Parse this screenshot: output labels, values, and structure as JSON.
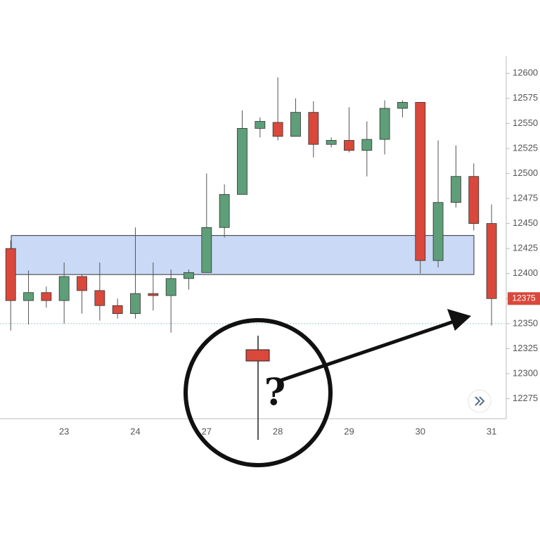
{
  "chart_data": {
    "type": "candlestick",
    "categories": [
      null,
      null,
      null,
      "23",
      null,
      null,
      null,
      "24",
      null,
      null,
      null,
      "27",
      null,
      null,
      null,
      "28",
      null,
      null,
      null,
      "29",
      null,
      null,
      null,
      "30",
      null,
      null,
      null,
      "31"
    ],
    "open": [
      12425,
      12373,
      12381,
      12373,
      12397,
      12383,
      12368,
      12360,
      12380,
      12378,
      12395,
      12401,
      12446,
      12479,
      12545,
      12551,
      12537,
      12561,
      12529,
      12533,
      12523,
      12534,
      12565,
      12571,
      12413,
      12471,
      12497,
      12450
    ],
    "high": [
      12433,
      12403,
      12387,
      12411,
      12399,
      12411,
      12375,
      12446,
      12411,
      12404,
      12404,
      12500,
      12489,
      12563,
      12556,
      12596,
      12575,
      12572,
      12536,
      12566,
      12552,
      12573,
      12573,
      12571,
      12533,
      12528,
      12510,
      12469
    ],
    "low": [
      12343,
      12349,
      12366,
      12350,
      12360,
      12353,
      12355,
      12355,
      12363,
      12341,
      12384,
      12401,
      12436,
      12479,
      12536,
      12533,
      12537,
      12516,
      12526,
      12521,
      12497,
      12519,
      12556,
      12400,
      12406,
      12466,
      12443,
      12348
    ],
    "close": [
      12373,
      12381,
      12373,
      12397,
      12383,
      12368,
      12360,
      12380,
      12378,
      12395,
      12401,
      12446,
      12479,
      12545,
      12552,
      12537,
      12561,
      12529,
      12533,
      12523,
      12534,
      12565,
      12571,
      12413,
      12471,
      12497,
      12450,
      12375
    ],
    "up_color": "#5e9e78",
    "down_color": "#d9483b",
    "ylim": [
      12255,
      12617
    ],
    "yticks": [
      12275,
      12300,
      12325,
      12350,
      12375,
      12400,
      12425,
      12450,
      12475,
      12500,
      12525,
      12550,
      12575,
      12600
    ],
    "zone": [
      12399,
      12438
    ],
    "zone_color": "#c9d9f6",
    "reference_line": 12350,
    "annotation": "?"
  }
}
